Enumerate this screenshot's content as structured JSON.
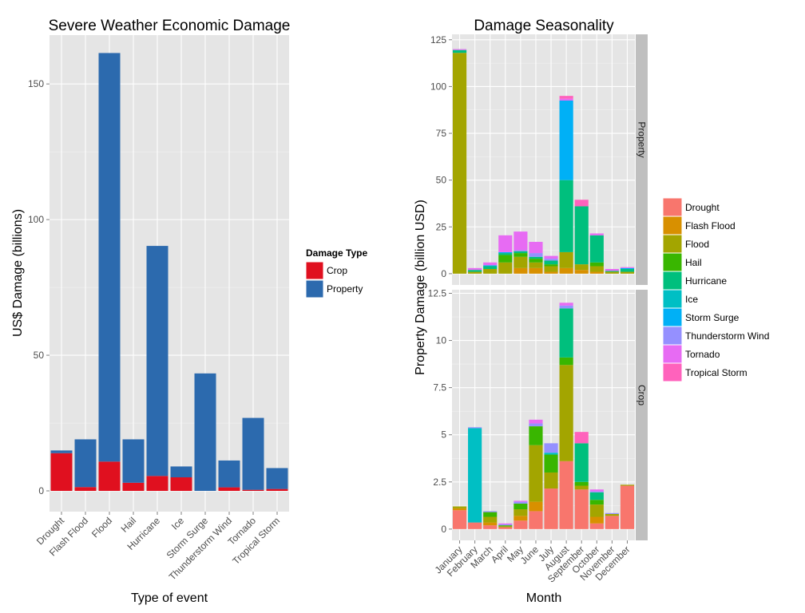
{
  "left_chart": {
    "title": "Severe Weather Economic Damage",
    "xlabel": "Type of event",
    "ylabel": "US$ Damage (billions)",
    "legend_title": "Damage Type"
  },
  "right_chart": {
    "title": "Damage Seasonality",
    "xlabel": "Month",
    "ylabel": "Property Damage (billion USD)"
  },
  "colors": {
    "panel_bg": "#E5E5E5",
    "grid_major": "#FFFFFF",
    "grid_minor": "#F2F2F2",
    "strip_bg": "#BFBFBF",
    "axis_text": "#4D4D4D",
    "crop": "#E0101F",
    "property": "#2C6AAE"
  },
  "chart_data": [
    {
      "type": "bar",
      "stacked": true,
      "title": "Severe Weather Economic Damage",
      "xlabel": "Type of event",
      "ylabel": "US$ Damage (billions)",
      "ylim": [
        0,
        168
      ],
      "yticks": [
        0,
        50,
        100,
        150
      ],
      "legend_placement": "right",
      "legend_title": "Damage Type",
      "categories": [
        "Drought",
        "Flash Flood",
        "Flood",
        "Hail",
        "Hurricane",
        "Ice",
        "Storm Surge",
        "Thunderstorm Wind",
        "Tornado",
        "Tropical Storm"
      ],
      "series": [
        {
          "name": "Crop",
          "color": "#E0101F",
          "values": [
            13.9,
            1.4,
            10.8,
            3.0,
            5.5,
            5.0,
            0.0,
            1.3,
            0.4,
            0.7
          ]
        },
        {
          "name": "Property",
          "color": "#2C6AAE",
          "values": [
            1.0,
            17.6,
            150.6,
            16.0,
            84.8,
            4.0,
            43.3,
            9.9,
            26.5,
            7.7
          ]
        }
      ]
    },
    {
      "type": "bar",
      "stacked": true,
      "faceted": true,
      "title": "Damage Seasonality",
      "xlabel": "Month",
      "ylabel": "Property Damage (billion USD)",
      "legend_placement": "right",
      "categories": [
        "January",
        "February",
        "March",
        "April",
        "May",
        "June",
        "July",
        "August",
        "September",
        "October",
        "November",
        "December"
      ],
      "legend": [
        {
          "name": "Drought",
          "color": "#F8766D"
        },
        {
          "name": "Flash Flood",
          "color": "#D89000"
        },
        {
          "name": "Flood",
          "color": "#A3A500"
        },
        {
          "name": "Hail",
          "color": "#39B600"
        },
        {
          "name": "Hurricane",
          "color": "#00BF7D"
        },
        {
          "name": "Ice",
          "color": "#00BFC4"
        },
        {
          "name": "Storm Surge",
          "color": "#00B0F6"
        },
        {
          "name": "Thunderstorm Wind",
          "color": "#9590FF"
        },
        {
          "name": "Tornado",
          "color": "#E76BF3"
        },
        {
          "name": "Tropical Storm",
          "color": "#FF62BC"
        }
      ],
      "facets": [
        {
          "strip": "Property",
          "ylim": [
            0,
            127
          ],
          "yticks": [
            0,
            25,
            50,
            75,
            100,
            125
          ],
          "ytick_labels": [
            "0",
            "25",
            "50",
            "75",
            "100",
            "125"
          ],
          "stacks": [
            [
              [
                2,
                118
              ],
              [
                4,
                1.5
              ],
              [
                8,
                0.5
              ]
            ],
            [
              [
                2,
                1
              ],
              [
                4,
                1
              ],
              [
                8,
                1
              ]
            ],
            [
              [
                2,
                2.5
              ],
              [
                4,
                1.5
              ],
              [
                6,
                0.5
              ],
              [
                8,
                1.5
              ]
            ],
            [
              [
                2,
                6
              ],
              [
                3,
                4
              ],
              [
                4,
                1
              ],
              [
                6,
                0.5
              ],
              [
                8,
                9
              ]
            ],
            [
              [
                1,
                3
              ],
              [
                2,
                6
              ],
              [
                3,
                2
              ],
              [
                4,
                1
              ],
              [
                7,
                0.5
              ],
              [
                8,
                10
              ]
            ],
            [
              [
                1,
                3
              ],
              [
                2,
                3
              ],
              [
                3,
                2
              ],
              [
                4,
                1
              ],
              [
                7,
                2
              ],
              [
                8,
                6
              ]
            ],
            [
              [
                1,
                1
              ],
              [
                2,
                3
              ],
              [
                3,
                1
              ],
              [
                4,
                2
              ],
              [
                7,
                1
              ],
              [
                8,
                1.5
              ]
            ],
            [
              [
                1,
                3
              ],
              [
                2,
                8.5
              ],
              [
                4,
                38.5
              ],
              [
                6,
                42.5
              ],
              [
                8,
                1
              ],
              [
                9,
                1.5
              ]
            ],
            [
              [
                1,
                2
              ],
              [
                2,
                3
              ],
              [
                4,
                31
              ],
              [
                9,
                3.5
              ]
            ],
            [
              [
                1,
                1
              ],
              [
                2,
                3
              ],
              [
                3,
                2
              ],
              [
                4,
                14.5
              ],
              [
                8,
                1
              ]
            ],
            [
              [
                2,
                1
              ],
              [
                4,
                0.5
              ],
              [
                8,
                1
              ]
            ],
            [
              [
                2,
                1
              ],
              [
                4,
                1.5
              ],
              [
                6,
                0.5
              ],
              [
                8,
                0.5
              ]
            ]
          ]
        },
        {
          "strip": "Crop",
          "ylim": [
            0,
            12.6
          ],
          "yticks": [
            0,
            2.5,
            5,
            7.5,
            10,
            12.5
          ],
          "ytick_labels": [
            "0",
            "2.5",
            "5",
            "7.5",
            "10",
            "12.5"
          ],
          "stacks": [
            [
              [
                0,
                1.0
              ],
              [
                1,
                0.1
              ],
              [
                2,
                0.1
              ]
            ],
            [
              [
                0,
                0.35
              ],
              [
                5,
                5.0
              ],
              [
                7,
                0.05
              ]
            ],
            [
              [
                0,
                0.2
              ],
              [
                1,
                0.15
              ],
              [
                2,
                0.3
              ],
              [
                3,
                0.25
              ],
              [
                7,
                0.05
              ]
            ],
            [
              [
                0,
                0.1
              ],
              [
                2,
                0.05
              ],
              [
                3,
                0.05
              ],
              [
                7,
                0.05
              ],
              [
                8,
                0.05
              ]
            ],
            [
              [
                0,
                0.45
              ],
              [
                1,
                0.25
              ],
              [
                2,
                0.35
              ],
              [
                3,
                0.3
              ],
              [
                7,
                0.1
              ],
              [
                8,
                0.05
              ]
            ],
            [
              [
                0,
                0.95
              ],
              [
                1,
                0.5
              ],
              [
                2,
                3.0
              ],
              [
                3,
                1.0
              ],
              [
                7,
                0.15
              ],
              [
                8,
                0.2
              ]
            ],
            [
              [
                0,
                2.15
              ],
              [
                2,
                0.85
              ],
              [
                3,
                0.95
              ],
              [
                5,
                0.1
              ],
              [
                7,
                0.5
              ]
            ],
            [
              [
                0,
                3.6
              ],
              [
                2,
                5.1
              ],
              [
                3,
                0.4
              ],
              [
                4,
                2.6
              ],
              [
                7,
                0.15
              ],
              [
                8,
                0.15
              ]
            ],
            [
              [
                0,
                2.1
              ],
              [
                2,
                0.2
              ],
              [
                3,
                0.2
              ],
              [
                4,
                2.05
              ],
              [
                9,
                0.6
              ]
            ],
            [
              [
                0,
                0.3
              ],
              [
                1,
                0.35
              ],
              [
                2,
                0.65
              ],
              [
                3,
                0.25
              ],
              [
                4,
                0.4
              ],
              [
                7,
                0.05
              ],
              [
                8,
                0.1
              ]
            ],
            [
              [
                0,
                0.7
              ],
              [
                2,
                0.1
              ],
              [
                7,
                0.05
              ]
            ],
            [
              [
                0,
                2.3
              ],
              [
                2,
                0.05
              ]
            ]
          ]
        }
      ]
    }
  ]
}
